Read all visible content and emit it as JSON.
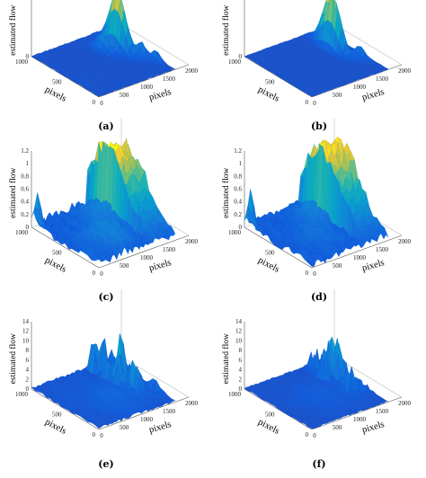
{
  "panels": [
    {
      "caption": "(a)"
    },
    {
      "caption": "(b)"
    },
    {
      "caption": "(c)"
    },
    {
      "caption": "(d)"
    },
    {
      "caption": "(e)"
    },
    {
      "caption": "(f)"
    }
  ],
  "chart_data": [
    {
      "type": "surface",
      "zlabel": "estimated flow",
      "xlabel": "pixels",
      "ylabel": "pixels",
      "x_ticks": [
        "0",
        "500",
        "1000",
        "1500",
        "2000"
      ],
      "y_ticks": [
        "0",
        "500",
        "1000"
      ],
      "z_ticks": [
        "0"
      ],
      "xlim": [
        0,
        2000
      ],
      "ylim": [
        0,
        1000
      ],
      "peaks": [
        {
          "x": 1400,
          "y": 650,
          "z": 1.25,
          "sx": 60,
          "sy": 120
        },
        {
          "x": 1150,
          "y": 700,
          "z": 0.35,
          "sx": 60,
          "sy": 80
        },
        {
          "x": 1550,
          "y": 400,
          "z": 0.3,
          "sx": 50,
          "sy": 60
        },
        {
          "x": 1650,
          "y": 250,
          "z": 0.22,
          "sx": 40,
          "sy": 50
        }
      ],
      "ridges": [],
      "noise": 0.02
    },
    {
      "type": "surface",
      "zlabel": "estimated flow",
      "xlabel": "pixels",
      "ylabel": "pixels",
      "x_ticks": [
        "0",
        "500",
        "1000",
        "1500",
        "2000"
      ],
      "y_ticks": [
        "0",
        "500",
        "1000"
      ],
      "z_ticks": [
        "0"
      ],
      "xlim": [
        0,
        2000
      ],
      "ylim": [
        0,
        1000
      ],
      "peaks": [
        {
          "x": 1420,
          "y": 650,
          "z": 1.25,
          "sx": 60,
          "sy": 120
        },
        {
          "x": 1600,
          "y": 350,
          "z": 0.25,
          "sx": 50,
          "sy": 60
        }
      ],
      "ridges": [],
      "noise": 0.015
    },
    {
      "type": "surface",
      "zlabel": "estimated flow",
      "xlabel": "pixels",
      "ylabel": "pixels",
      "x_ticks": [
        "0",
        "500",
        "1000",
        "1500",
        "2000"
      ],
      "y_ticks": [
        "0",
        "500",
        "1000"
      ],
      "z_ticks": [
        "0",
        "0.2",
        "0.4",
        "0.6",
        "0.8",
        "1",
        "1.2"
      ],
      "xlim": [
        0,
        2000
      ],
      "ylim": [
        0,
        1000
      ],
      "peaks": [
        {
          "x": 30,
          "y": 930,
          "z": 0.8,
          "sx": 25,
          "sy": 40
        },
        {
          "x": 700,
          "y": 320,
          "z": 0.22,
          "sx": 260,
          "sy": 180
        },
        {
          "x": 1100,
          "y": 700,
          "z": 0.25,
          "sx": 180,
          "sy": 140
        }
      ],
      "ridges": [
        {
          "x": 1250,
          "y": 680,
          "z": 1.1,
          "w": 280,
          "sy": 260
        }
      ],
      "noise": 0.14
    },
    {
      "type": "surface",
      "zlabel": "estimated flow",
      "xlabel": "pixels",
      "ylabel": "pixels",
      "x_ticks": [
        "0",
        "500",
        "1000",
        "1500",
        "2000"
      ],
      "y_ticks": [
        "0",
        "500",
        "1000"
      ],
      "z_ticks": [
        "0",
        "0.2",
        "0.4",
        "0.6",
        "0.8",
        "1",
        "1.2"
      ],
      "xlim": [
        0,
        2000
      ],
      "ylim": [
        0,
        1000
      ],
      "peaks": [
        {
          "x": 30,
          "y": 930,
          "z": 0.8,
          "sx": 25,
          "sy": 40
        },
        {
          "x": 700,
          "y": 400,
          "z": 0.12,
          "sx": 240,
          "sy": 160
        },
        {
          "x": 1050,
          "y": 700,
          "z": 0.22,
          "sx": 160,
          "sy": 140
        }
      ],
      "ridges": [
        {
          "x": 1250,
          "y": 680,
          "z": 1.15,
          "w": 300,
          "sy": 260
        }
      ],
      "noise": 0.12
    },
    {
      "type": "surface",
      "zlabel": "estimated flow",
      "xlabel": "pixels",
      "ylabel": "pixels",
      "x_ticks": [
        "0",
        "500",
        "1000",
        "1500",
        "2000"
      ],
      "y_ticks": [
        "0",
        "500",
        "1000"
      ],
      "z_ticks": [
        "0",
        "2",
        "4",
        "6",
        "8",
        "10",
        "12",
        "14"
      ],
      "xlim": [
        0,
        2000
      ],
      "ylim": [
        0,
        1000
      ],
      "peaks": [
        {
          "x": 900,
          "y": 400,
          "z": 1.0,
          "sx": 300,
          "sy": 200
        }
      ],
      "ridges": [
        {
          "x": 1250,
          "y": 700,
          "z": 10.5,
          "w": 320,
          "sy": 240
        }
      ],
      "noise": 0.9,
      "spiky": true
    },
    {
      "type": "surface",
      "zlabel": "estimated flow",
      "xlabel": "pixels",
      "ylabel": "pixels",
      "x_ticks": [
        "0",
        "500",
        "1000",
        "1500",
        "2000"
      ],
      "y_ticks": [
        "0",
        "500",
        "1000"
      ],
      "z_ticks": [
        "0",
        "2",
        "4",
        "6",
        "8",
        "10",
        "12",
        "14"
      ],
      "xlim": [
        0,
        2000
      ],
      "ylim": [
        0,
        1000
      ],
      "peaks": [
        {
          "x": 900,
          "y": 450,
          "z": 0.6,
          "sx": 300,
          "sy": 200
        }
      ],
      "ridges": [
        {
          "x": 1300,
          "y": 700,
          "z": 7.5,
          "w": 300,
          "sy": 240
        }
      ],
      "noise": 0.5,
      "spiky": true
    }
  ]
}
